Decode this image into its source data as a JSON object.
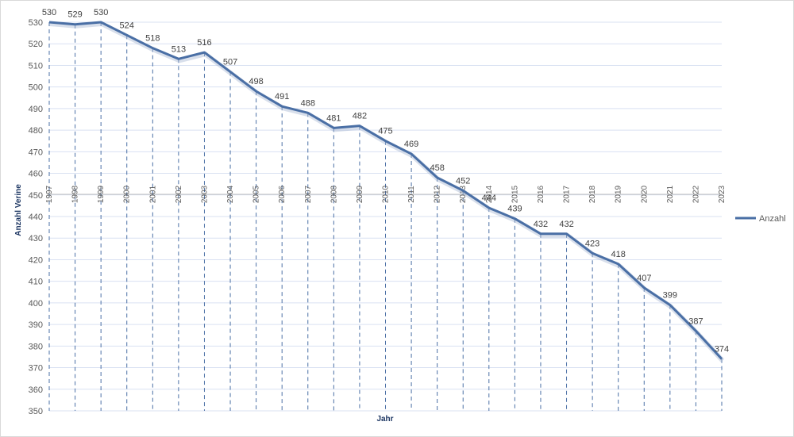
{
  "chart_data": {
    "type": "line",
    "title": "",
    "xlabel": "Jahr",
    "ylabel": "Anzahl Verine",
    "ylim": [
      350,
      530
    ],
    "y_ticks": [
      350,
      360,
      370,
      380,
      390,
      400,
      410,
      420,
      430,
      440,
      450,
      460,
      470,
      480,
      490,
      500,
      510,
      520,
      530
    ],
    "grid": true,
    "legend_position": "right",
    "line_color": "#4a6fa5",
    "grid_color": "#d9e1f2",
    "x": [
      "1997",
      "1998",
      "1999",
      "2000",
      "2001",
      "2002",
      "2003",
      "2004",
      "2005",
      "2006",
      "2007",
      "2008",
      "2009",
      "2010",
      "2011",
      "2012",
      "2013",
      "2014",
      "2015",
      "2016",
      "2017",
      "2018",
      "2019",
      "2020",
      "2021",
      "2022",
      "2023"
    ],
    "series": [
      {
        "name": "Anzahl",
        "values": [
          530,
          529,
          530,
          524,
          518,
          513,
          516,
          507,
          498,
          491,
          488,
          481,
          482,
          475,
          469,
          458,
          452,
          444,
          439,
          432,
          432,
          423,
          418,
          407,
          399,
          387,
          374
        ]
      }
    ]
  }
}
